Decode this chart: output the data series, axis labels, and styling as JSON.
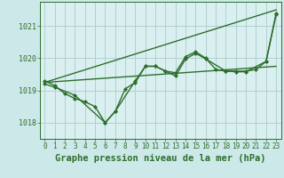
{
  "title": "Graphe pression niveau de la mer (hPa)",
  "background_color": "#cce8e8",
  "grid_color": "#b0d0d0",
  "plot_bg_color": "#daf0f0",
  "line_color": "#2d6e2d",
  "xlim": [
    -0.5,
    23.5
  ],
  "ylim": [
    1017.5,
    1021.75
  ],
  "yticks": [
    1018,
    1019,
    1020,
    1021
  ],
  "xticks": [
    0,
    1,
    2,
    3,
    4,
    5,
    6,
    7,
    8,
    9,
    10,
    11,
    12,
    13,
    14,
    15,
    16,
    17,
    18,
    19,
    20,
    21,
    22,
    23
  ],
  "series": {
    "line_diagonal": {
      "x": [
        0,
        23
      ],
      "y": [
        1019.25,
        1021.5
      ],
      "has_markers": false
    },
    "line_flat": {
      "x": [
        0,
        23
      ],
      "y": [
        1019.25,
        1019.75
      ],
      "has_markers": false
    },
    "line_wiggly1": {
      "x": [
        0,
        1,
        2,
        3,
        4,
        5,
        6,
        7,
        8,
        9,
        10,
        11,
        12,
        13,
        14,
        15,
        16,
        17,
        18,
        19,
        20,
        21,
        22,
        23
      ],
      "y": [
        1019.3,
        1019.15,
        1018.9,
        1018.75,
        1018.65,
        1018.5,
        1018.0,
        1018.35,
        1019.05,
        1019.25,
        1019.75,
        1019.75,
        1019.6,
        1019.55,
        1020.05,
        1020.2,
        1020.0,
        1019.65,
        1019.6,
        1019.6,
        1019.6,
        1019.65,
        1019.9,
        1021.4
      ],
      "has_markers": true
    },
    "line_wiggly2": {
      "x": [
        0,
        1,
        3,
        6,
        7,
        9,
        10,
        11,
        12,
        13,
        14,
        15,
        16,
        18,
        19,
        20,
        22,
        23
      ],
      "y": [
        1019.2,
        1019.1,
        1018.85,
        1018.0,
        1018.35,
        1019.3,
        1019.75,
        1019.75,
        1019.6,
        1019.45,
        1019.98,
        1020.15,
        1019.98,
        1019.6,
        1019.58,
        1019.58,
        1019.9,
        1021.35
      ],
      "has_markers": true
    }
  },
  "marker_size": 2.0,
  "line_width": 1.0,
  "font_family": "monospace",
  "title_fontsize": 7.5,
  "tick_fontsize": 5.5
}
